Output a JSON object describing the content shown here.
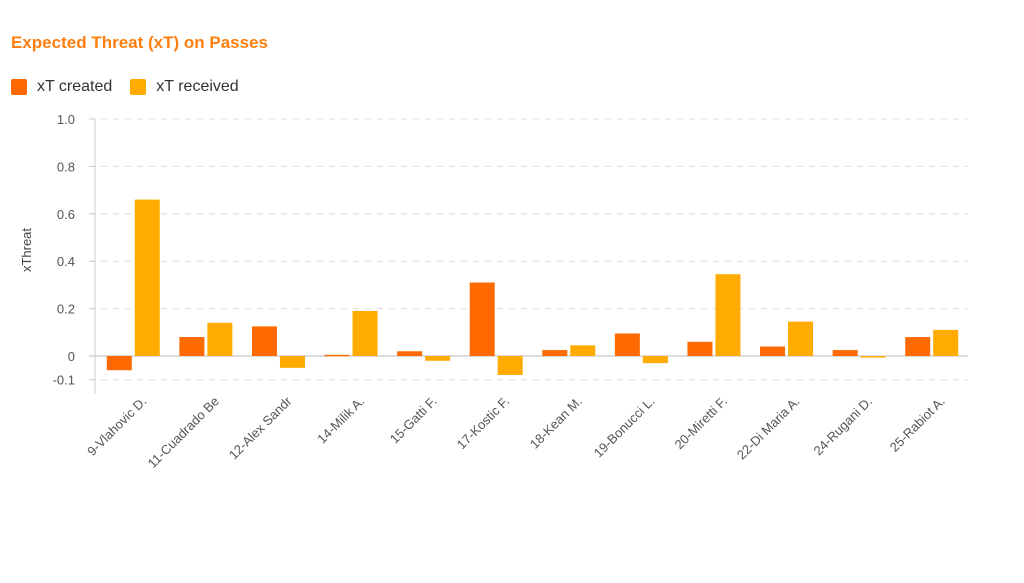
{
  "chart_data": {
    "type": "bar",
    "title": "Expected Threat (xT) on Passes",
    "xlabel": "",
    "ylabel": "xThreat",
    "ylim": [
      -0.1,
      1.0
    ],
    "yticks": [
      -0.1,
      0,
      0.2,
      0.4,
      0.6,
      0.8,
      1.0
    ],
    "ytick_labels": [
      "-0.1",
      "0",
      "0.2",
      "0.4",
      "0.6",
      "0.8",
      "1.0"
    ],
    "grid": true,
    "legend_position": "top-left",
    "categories": [
      "9-Vlahovic D.",
      "11-Cuadrado Be",
      "12-Alex Sandr",
      "14-Milik A.",
      "15-Gatti F.",
      "17-Kostic F.",
      "18-Kean M.",
      "19-Bonucci L.",
      "20-Miretti F.",
      "22-Di Maria A.",
      "24-Rugani D.",
      "25-Rabiot A."
    ],
    "series": [
      {
        "name": "xT created",
        "color": "#ff6a00",
        "values": [
          -0.06,
          0.08,
          0.125,
          0.005,
          0.02,
          0.31,
          0.025,
          0.095,
          0.06,
          0.04,
          0.025,
          0.08
        ]
      },
      {
        "name": "xT received",
        "color": "#ffab00",
        "values": [
          0.66,
          0.14,
          -0.05,
          0.19,
          -0.02,
          -0.08,
          0.045,
          -0.03,
          0.345,
          0.145,
          -0.005,
          0.11
        ]
      }
    ]
  }
}
